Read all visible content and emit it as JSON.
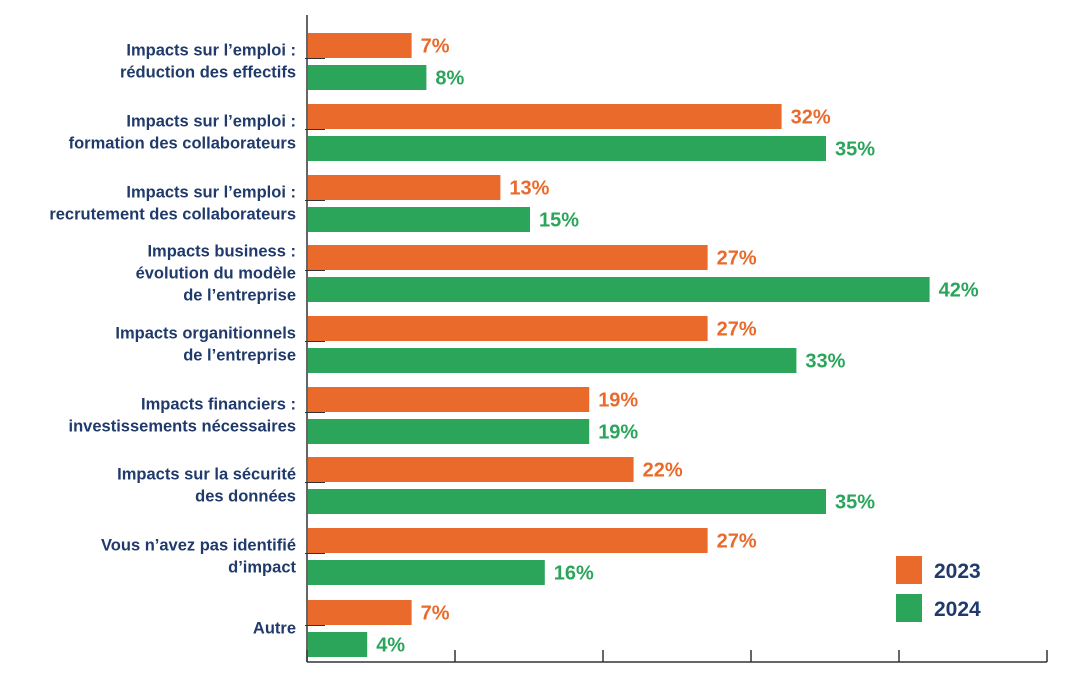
{
  "chart_data": {
    "type": "bar",
    "orientation": "horizontal",
    "title": "",
    "xlabel": "",
    "ylabel": "",
    "xlim": [
      0,
      50
    ],
    "grid": false,
    "legend_position": "bottom-right",
    "categories": [
      [
        "Impacts sur l’emploi :",
        "réduction des effectifs"
      ],
      [
        "Impacts sur l’emploi :",
        "formation des collaborateurs"
      ],
      [
        "Impacts sur l’emploi :",
        "recrutement des collaborateurs"
      ],
      [
        "Impacts business :",
        "évolution du modèle",
        "de l’entreprise"
      ],
      [
        "Impacts organitionnels",
        "de l’entreprise"
      ],
      [
        "Impacts financiers :",
        "investissements nécessaires"
      ],
      [
        "Impacts sur la sécurité",
        "des données"
      ],
      [
        "Vous n’avez pas identifié",
        "d’impact"
      ],
      [
        "Autre"
      ]
    ],
    "series": [
      {
        "name": "2023",
        "color": "#ea6a2c",
        "values": [
          7,
          32,
          13,
          27,
          27,
          19,
          22,
          27,
          7
        ],
        "labels": [
          "7%",
          "32%",
          "13%",
          "27%",
          "27%",
          "19%",
          "22%",
          "27%",
          "7%"
        ]
      },
      {
        "name": "2024",
        "color": "#2aa55a",
        "values": [
          8,
          35,
          15,
          42,
          33,
          19,
          35,
          16,
          4
        ],
        "labels": [
          "8%",
          "35%",
          "15%",
          "42%",
          "33%",
          "19%",
          "35%",
          "16%",
          "4%"
        ]
      }
    ],
    "colors": {
      "category_text": "#1f3a6b",
      "axis": "#333333"
    }
  }
}
